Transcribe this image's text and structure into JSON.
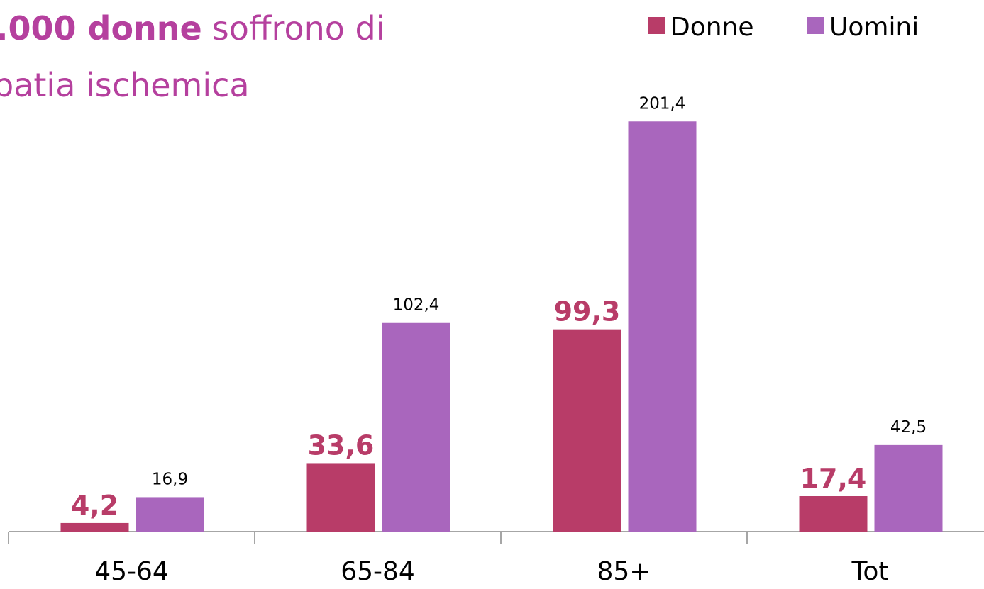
{
  "chart_data": {
    "type": "bar",
    "title": {
      "bold": ".000 donne",
      "rest": "soffrono di",
      "line2": "patia ischemica"
    },
    "categories": [
      "45-64",
      "65-84",
      "85+",
      "Tot"
    ],
    "series": [
      {
        "name": "Donne",
        "color": "#b83c68",
        "values": [
          4.2,
          33.6,
          99.3,
          17.4
        ],
        "value_labels": [
          "4,2",
          "33,6",
          "99,3",
          "17,4"
        ]
      },
      {
        "name": "Uomini",
        "color": "#a966bd",
        "values": [
          16.9,
          102.4,
          201.4,
          42.5
        ],
        "value_labels": [
          "16,9",
          "102,4",
          "201,4",
          "42,5"
        ]
      }
    ],
    "ylim": [
      0,
      261
    ],
    "legend": "top-right"
  }
}
